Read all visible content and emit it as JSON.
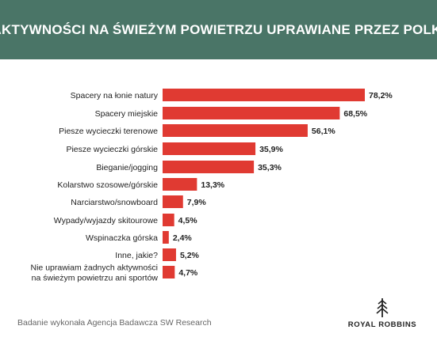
{
  "header": {
    "title": "AKTYWNOŚCI NA ŚWIEŻYM POWIETRZU UPRAWIANE PRZEZ POLKI"
  },
  "chart_data": {
    "type": "bar",
    "orientation": "horizontal",
    "title": "AKTYWNOŚCI NA ŚWIEŻYM POWIETRZU UPRAWIANE PRZEZ POLKI",
    "categories": [
      "Spacery na łonie natury",
      "Spacery miejskie",
      "Piesze wycieczki terenowe",
      "Piesze wycieczki górskie",
      "Bieganie/jogging",
      "Kolarstwo szosowe/górskie",
      "Narciarstwo/snowboard",
      "Wypady/wyjazdy skitourowe",
      "Wspinaczka górska",
      "Inne, jakie?",
      "Nie uprawiam żadnych aktywności na świeżym powietrzu ani sportów"
    ],
    "category_lines": [
      [
        "Spacery na łonie natury"
      ],
      [
        "Spacery miejskie"
      ],
      [
        "Piesze wycieczki terenowe"
      ],
      [
        "Piesze wycieczki górskie"
      ],
      [
        "Bieganie/jogging"
      ],
      [
        "Kolarstwo szosowe/górskie"
      ],
      [
        "Narciarstwo/snowboard"
      ],
      [
        "Wypady/wyjazdy skitourowe"
      ],
      [
        "Wspinaczka górska"
      ],
      [
        "Inne, jakie?"
      ],
      [
        "Nie uprawiam żadnych aktywności",
        "na świeżym powietrzu ani sportów"
      ]
    ],
    "values": [
      78.2,
      68.5,
      56.1,
      35.9,
      35.3,
      13.3,
      7.9,
      4.5,
      2.4,
      5.2,
      4.7
    ],
    "value_labels": [
      "78,2%",
      "68,5%",
      "56,1%",
      "35,9%",
      "35,3%",
      "13,3%",
      "7,9%",
      "4,5%",
      "2,4%",
      "5,2%",
      "4,7%"
    ],
    "xlim": [
      0,
      78.2
    ],
    "grid": false,
    "bar_color": "#e03a32"
  },
  "footer": {
    "note": "Badanie wykonała Agencja Badawcza SW Research",
    "brand": "ROYAL ROBBINS",
    "brand_icon": "tree-icon"
  }
}
